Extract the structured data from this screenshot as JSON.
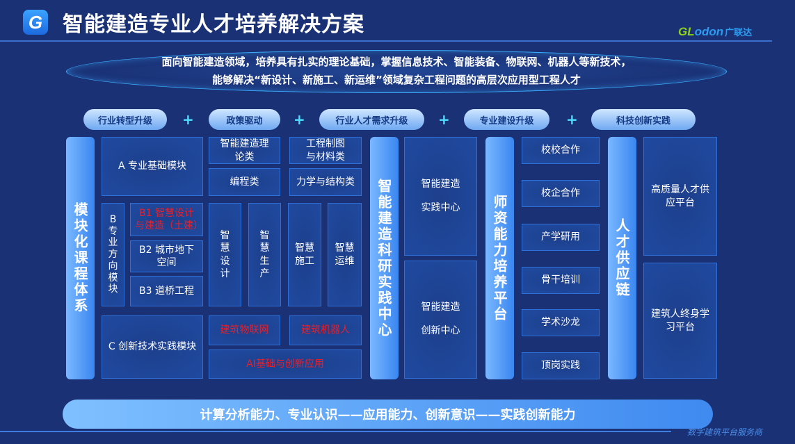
{
  "header": {
    "logo": "G",
    "title": "智能建造专业人才培养解决方案",
    "brand": {
      "g": "GL",
      "d": "odon",
      "c": "广联达"
    }
  },
  "mission": {
    "line1": "面向智能建造领域，培养具有扎实的理论基础，掌握信息技术、智能装备、物联网、机器人等新技术，",
    "line2": "能够解决“新设计、新施工、新运维”领域复杂工程问题的高层次应用型工程人才"
  },
  "drivers": [
    "行业转型升级",
    "政策驱动",
    "行业人才需求升级",
    "专业建设升级",
    "科技创新实践"
  ],
  "plus": "+",
  "course": {
    "bar": "模块化课程体系",
    "a": "A 专业基础模块",
    "theory": "智能建造理论类",
    "drawing": "工程制图与材料类",
    "programming": "编程类",
    "mechanics": "力学与结构类",
    "b": "B专业方向模块",
    "b1": "B1 智慧设计与建造（土建）",
    "b2": "B2 城市地下空间",
    "b3": "B3 道桥工程",
    "smart": [
      "智慧设计",
      "智慧生产",
      "智慧施工",
      "智慧运维"
    ],
    "c": "C 创新技术实践模块",
    "iot": "建筑物联网",
    "robot": "建筑机器人",
    "ai": "AI基础与创新应用"
  },
  "research": {
    "bar": "智能建造科研实践中心",
    "practice": "智能建造实践中心",
    "innovation": "智能建造创新中心"
  },
  "teacher": {
    "bar": "师资能力培养平台",
    "items": [
      "校校合作",
      "校企合作",
      "产学研用",
      "骨干培训",
      "学术沙龙",
      "顶岗实践"
    ]
  },
  "talent": {
    "bar": "人才供应链",
    "supply": "高质量人才供应平台",
    "lifelong": "建筑人终身学习平台"
  },
  "bottom": "计算分析能力、专业认识——应用能力、创新意识——实践创新能力",
  "tagline": "数字建筑平台服务商",
  "colors": {
    "background": "#1a3175",
    "highlight": "#e8202a",
    "brand_green": "#8cd11a",
    "brand_blue": "#2c9cf0"
  }
}
